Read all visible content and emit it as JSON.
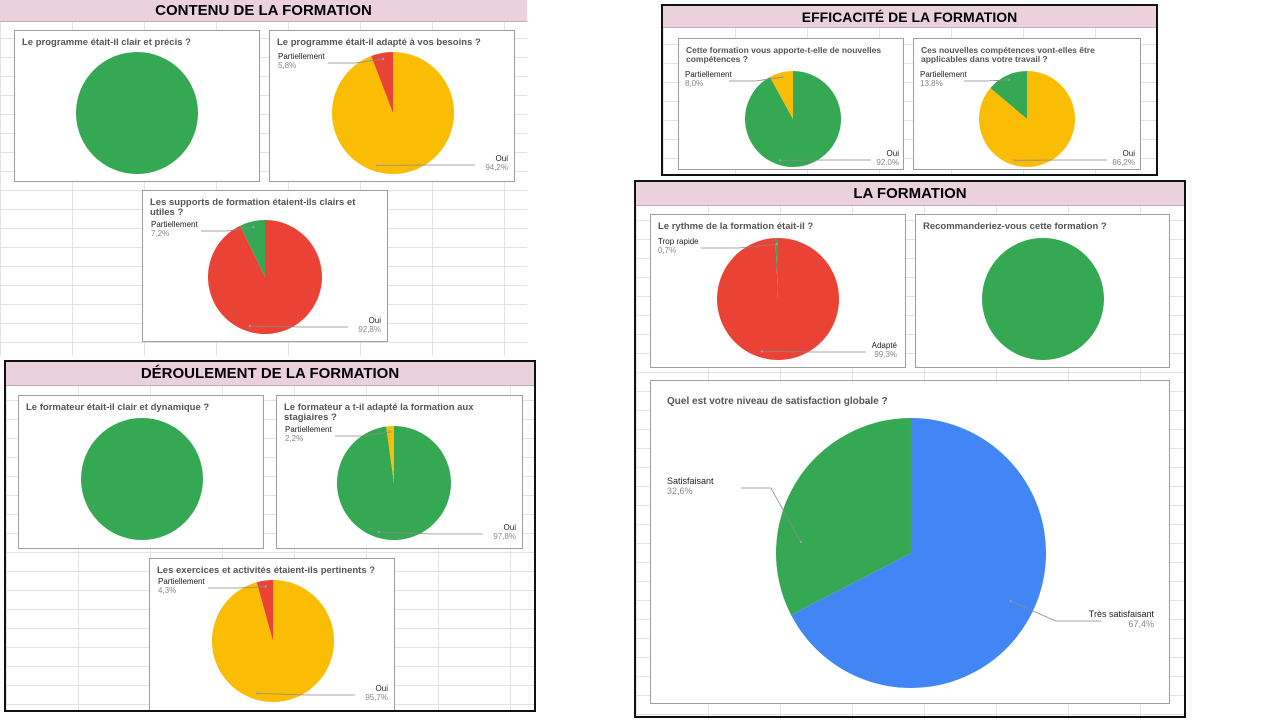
{
  "colors": {
    "green": "#34a853",
    "yellow": "#fbbc04",
    "red": "#ea4335",
    "blue": "#4285f4"
  },
  "sections": {
    "contenu": "CONTENU DE LA FORMATION",
    "deroulement": "DÉROULEMENT DE LA FORMATION",
    "efficacite": "EFFICACITÉ DE LA FORMATION",
    "formation": "LA FORMATION"
  },
  "chart_data": [
    {
      "id": "c1",
      "type": "pie",
      "title": "Le programme était-il clair et précis ?",
      "slices": [
        {
          "name": "",
          "value": 100,
          "color": "#34a853",
          "label": ""
        }
      ]
    },
    {
      "id": "c2",
      "type": "pie",
      "title": "Le programme était-il adapté à vos besoins ?",
      "slices": [
        {
          "name": "Oui",
          "value": 94.2,
          "color": "#fbbc04",
          "label": "94,2%"
        },
        {
          "name": "Partiellement",
          "value": 5.8,
          "color": "#ea4335",
          "label": "5,8%"
        }
      ]
    },
    {
      "id": "c3",
      "type": "pie",
      "title": "Les supports de formation étaient-ils clairs et utiles ?",
      "slices": [
        {
          "name": "Oui",
          "value": 92.8,
          "color": "#ea4335",
          "label": "92,8%"
        },
        {
          "name": "Partiellement",
          "value": 7.2,
          "color": "#34a853",
          "label": "7,2%"
        }
      ]
    },
    {
      "id": "d1",
      "type": "pie",
      "title": "Le formateur était-il clair et dynamique ?",
      "slices": [
        {
          "name": "",
          "value": 100,
          "color": "#34a853",
          "label": ""
        }
      ]
    },
    {
      "id": "d2",
      "type": "pie",
      "title": "Le formateur a t-il adapté la formation aux stagiaires ?",
      "slices": [
        {
          "name": "Oui",
          "value": 97.8,
          "color": "#34a853",
          "label": "97,8%"
        },
        {
          "name": "Partiellement",
          "value": 2.2,
          "color": "#fbbc04",
          "label": "2,2%"
        }
      ]
    },
    {
      "id": "d3",
      "type": "pie",
      "title": "Les exercices et activités étaient-ils pertinents ?",
      "slices": [
        {
          "name": "Oui",
          "value": 95.7,
          "color": "#fbbc04",
          "label": "95,7%"
        },
        {
          "name": "Partiellement",
          "value": 4.3,
          "color": "#ea4335",
          "label": "4,3%"
        }
      ]
    },
    {
      "id": "e1",
      "type": "pie",
      "title": "Cette formation vous apporte-t-elle de nouvelles compétences ?",
      "slices": [
        {
          "name": "Oui",
          "value": 92.0,
          "color": "#34a853",
          "label": "92,0%"
        },
        {
          "name": "Partiellement",
          "value": 8.0,
          "color": "#fbbc04",
          "label": "8,0%"
        }
      ]
    },
    {
      "id": "e2",
      "type": "pie",
      "title": "Ces nouvelles compétences vont-elles être applicables dans votre travail ?",
      "slices": [
        {
          "name": "Oui",
          "value": 86.2,
          "color": "#fbbc04",
          "label": "86,2%"
        },
        {
          "name": "Partiellement",
          "value": 13.8,
          "color": "#34a853",
          "label": "13,8%"
        }
      ]
    },
    {
      "id": "f1",
      "type": "pie",
      "title": "Le rythme de la formation était-il ?",
      "slices": [
        {
          "name": "Adapté",
          "value": 99.3,
          "color": "#ea4335",
          "label": "99,3%"
        },
        {
          "name": "Trop rapide",
          "value": 0.7,
          "color": "#34a853",
          "label": "0,7%"
        }
      ]
    },
    {
      "id": "f2",
      "type": "pie",
      "title": "Recommanderiez-vous cette formation ?",
      "slices": [
        {
          "name": "",
          "value": 100,
          "color": "#34a853",
          "label": ""
        }
      ]
    },
    {
      "id": "f3",
      "type": "pie",
      "title": "Quel est votre niveau de satisfaction globale ?",
      "slices": [
        {
          "name": "Très satisfaisant",
          "value": 67.4,
          "color": "#4285f4",
          "label": "67,4%"
        },
        {
          "name": "Satisfaisant",
          "value": 32.6,
          "color": "#34a853",
          "label": "32,6%"
        }
      ]
    }
  ]
}
